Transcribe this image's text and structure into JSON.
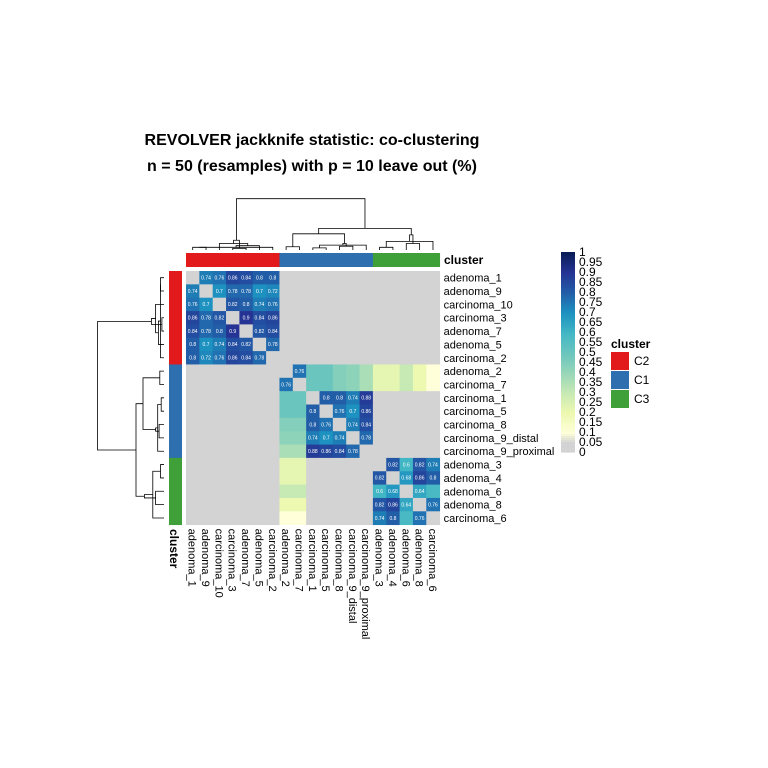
{
  "chart_data": {
    "type": "heatmap",
    "title": "REVOLVER jackknife statistic: co-clustering",
    "subtitle": "n = 50 (resamples) with p = 10 leave out (%)",
    "annotation_label": "cluster",
    "samples": [
      "adenoma_1",
      "adenoma_9",
      "carcinoma_10",
      "carcinoma_3",
      "adenoma_7",
      "adenoma_5",
      "carcinoma_2",
      "adenoma_2",
      "carcinoma_7",
      "carcinoma_1",
      "carcinoma_5",
      "carcinoma_8",
      "carcinoma_9_distal",
      "carcinoma_9_proximal",
      "adenoma_3",
      "adenoma_4",
      "adenoma_6",
      "adenoma_8",
      "carcinoma_6"
    ],
    "sample_clusters": [
      "C2",
      "C2",
      "C2",
      "C2",
      "C2",
      "C2",
      "C2",
      "C1",
      "C1",
      "C1",
      "C1",
      "C1",
      "C1",
      "C1",
      "C3",
      "C3",
      "C3",
      "C3",
      "C3"
    ],
    "clusters": [
      {
        "name": "C2",
        "color": "#E31A1C"
      },
      {
        "name": "C1",
        "color": "#2E6FB0"
      },
      {
        "name": "C3",
        "color": "#3FA03A"
      }
    ],
    "color_scale": {
      "ticks": [
        "1",
        "0.95",
        "0.9",
        "0.85",
        "0.8",
        "0.75",
        "0.7",
        "0.65",
        "0.6",
        "0.55",
        "0.5",
        "0.45",
        "0.4",
        "0.35",
        "0.3",
        "0.25",
        "0.2",
        "0.15",
        "0.1",
        "0.05",
        "0"
      ],
      "low_color": "#D3D3D3",
      "high_color": "#1D2D7E"
    },
    "matrix": [
      [
        null,
        0.74,
        0.76,
        0.86,
        0.84,
        0.8,
        0.8,
        0,
        0,
        0,
        0,
        0,
        0,
        0,
        0,
        0,
        0,
        0,
        0
      ],
      [
        0.74,
        null,
        0.7,
        0.78,
        0.78,
        0.7,
        0.72,
        0,
        0,
        0,
        0,
        0,
        0,
        0,
        0,
        0,
        0,
        0,
        0
      ],
      [
        0.76,
        0.7,
        null,
        0.82,
        0.8,
        0.74,
        0.76,
        0,
        0,
        0,
        0,
        0,
        0,
        0,
        0,
        0,
        0,
        0,
        0
      ],
      [
        0.86,
        0.78,
        0.82,
        null,
        0.9,
        0.84,
        0.86,
        0,
        0,
        0,
        0,
        0,
        0,
        0,
        0,
        0,
        0,
        0,
        0
      ],
      [
        0.84,
        0.78,
        0.8,
        0.9,
        null,
        0.82,
        0.84,
        0,
        0,
        0,
        0,
        0,
        0,
        0,
        0,
        0,
        0,
        0,
        0
      ],
      [
        0.8,
        0.7,
        0.74,
        0.84,
        0.82,
        null,
        0.78,
        0,
        0,
        0,
        0,
        0,
        0,
        0,
        0,
        0,
        0,
        0,
        0
      ],
      [
        0.8,
        0.72,
        0.76,
        0.86,
        0.84,
        0.78,
        null,
        0,
        0,
        0,
        0,
        0,
        0,
        0,
        0,
        0,
        0,
        0,
        0
      ],
      [
        0,
        0,
        0,
        0,
        0,
        0,
        0,
        null,
        0.76,
        0.5,
        0.5,
        0.44,
        0.42,
        0.36,
        0.22,
        0.22,
        0.3,
        0.2,
        0.1
      ],
      [
        0,
        0,
        0,
        0,
        0,
        0,
        0,
        0.76,
        null,
        0.5,
        0.5,
        0.44,
        0.42,
        0.36,
        0.22,
        0.22,
        0.3,
        0.2,
        0.1
      ],
      [
        0,
        0,
        0,
        0,
        0,
        0,
        0,
        0.5,
        0.5,
        null,
        0.8,
        0.8,
        0.74,
        0.88,
        0,
        0,
        0,
        0,
        0
      ],
      [
        0,
        0,
        0,
        0,
        0,
        0,
        0,
        0.5,
        0.5,
        0.8,
        null,
        0.76,
        0.7,
        0.86,
        0,
        0,
        0,
        0,
        0
      ],
      [
        0,
        0,
        0,
        0,
        0,
        0,
        0,
        0.44,
        0.44,
        0.8,
        0.76,
        null,
        0.74,
        0.84,
        0,
        0,
        0,
        0,
        0
      ],
      [
        0,
        0,
        0,
        0,
        0,
        0,
        0,
        0.42,
        0.42,
        0.74,
        0.7,
        0.74,
        null,
        0.78,
        0,
        0,
        0,
        0,
        0
      ],
      [
        0,
        0,
        0,
        0,
        0,
        0,
        0,
        0.36,
        0.36,
        0.88,
        0.86,
        0.84,
        0.78,
        null,
        0,
        0,
        0,
        0,
        0
      ],
      [
        0,
        0,
        0,
        0,
        0,
        0,
        0,
        0.22,
        0.22,
        0,
        0,
        0,
        0,
        0,
        null,
        0.82,
        0.6,
        0.82,
        0.74
      ],
      [
        0,
        0,
        0,
        0,
        0,
        0,
        0,
        0.22,
        0.22,
        0,
        0,
        0,
        0,
        0,
        0.82,
        null,
        0.68,
        0.86,
        0.8
      ],
      [
        0,
        0,
        0,
        0,
        0,
        0,
        0,
        0.3,
        0.3,
        0,
        0,
        0,
        0,
        0,
        0.6,
        0.68,
        null,
        0.64,
        0.58
      ],
      [
        0,
        0,
        0,
        0,
        0,
        0,
        0,
        0.2,
        0.2,
        0,
        0,
        0,
        0,
        0,
        0.82,
        0.86,
        0.64,
        null,
        0.76
      ],
      [
        0,
        0,
        0,
        0,
        0,
        0,
        0,
        0.1,
        0.1,
        0,
        0,
        0,
        0,
        0,
        0.74,
        0.8,
        0.58,
        0.76,
        null
      ]
    ],
    "dendrogram": [
      [
        0,
        1,
        0.05
      ],
      [
        3,
        4,
        0.03
      ],
      [
        6,
        19,
        0.05
      ],
      [
        5,
        21,
        0.08
      ],
      [
        2,
        22,
        0.12
      ],
      [
        20,
        23,
        0.18
      ],
      [
        7,
        8,
        0.06
      ],
      [
        9,
        10,
        0.04
      ],
      [
        11,
        12,
        0.07
      ],
      [
        13,
        26,
        0.09
      ],
      [
        27,
        28,
        0.12
      ],
      [
        25,
        29,
        0.3
      ],
      [
        14,
        15,
        0.05
      ],
      [
        16,
        17,
        0.12
      ],
      [
        31,
        18,
        0.16
      ],
      [
        32,
        33,
        0.28
      ],
      [
        30,
        34,
        0.4
      ],
      [
        24,
        35,
        0.95
      ]
    ]
  }
}
